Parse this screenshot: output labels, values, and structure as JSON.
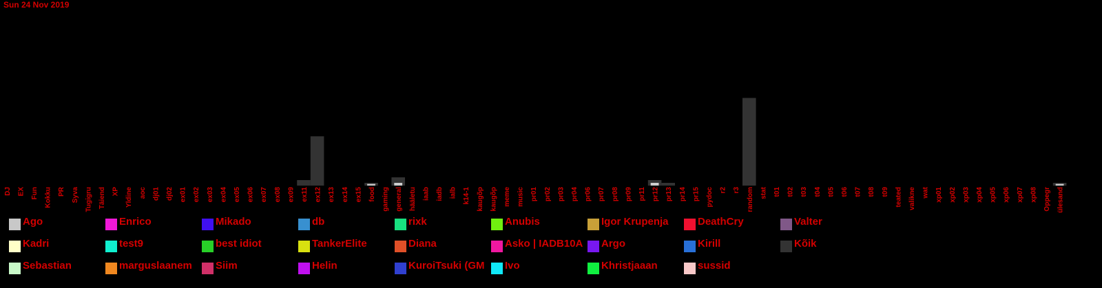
{
  "chart_data": {
    "type": "bar",
    "title": "Sun 24 Nov 2019",
    "xlabel": "",
    "ylabel": "",
    "categories": [
      "DJ",
      "EX",
      "Fun",
      "Kokku",
      "PR",
      "Syva",
      "Tugigru",
      "Täiend",
      "XP",
      "Yldine",
      "aoc",
      "dj01",
      "dj02",
      "ex01",
      "ex02",
      "ex03",
      "ex04",
      "ex05",
      "ex06",
      "ex07",
      "ex08",
      "ex09",
      "ex11",
      "ex12",
      "ex13",
      "ex14",
      "ex15",
      "food",
      "gaming",
      "general",
      "hääletu",
      "iaab",
      "iadb",
      "ialb",
      "k14-1",
      "kaugõp",
      "kaugõp",
      "meme",
      "music",
      "pr01",
      "pr02",
      "pr03",
      "pr04",
      "pr06",
      "pr07",
      "pr08",
      "pr09",
      "pr11",
      "pr12",
      "pr13",
      "pr14",
      "pr15",
      "pydoc",
      "r2",
      "r3",
      "random",
      "stat",
      "t01",
      "t02",
      "t03",
      "t04",
      "t05",
      "t06",
      "t07",
      "t08",
      "t09",
      "teated",
      "valikne",
      "wat",
      "xp01",
      "xp02",
      "xp03",
      "xp04",
      "xp05",
      "xp06",
      "xp07",
      "xp08",
      "Oppegr",
      "ülesand"
    ],
    "series": [
      {
        "name": "Kõik",
        "color": "#333333",
        "values": [
          0,
          0,
          0,
          0,
          0,
          0,
          0,
          0,
          0,
          0,
          0,
          0,
          0,
          0,
          0,
          0,
          0,
          0,
          0,
          0,
          0,
          0,
          1,
          9,
          0,
          0,
          0,
          0.5,
          0,
          1.5,
          0,
          0,
          0,
          0,
          0,
          0,
          0,
          0,
          0,
          0,
          0,
          0,
          0,
          0,
          0,
          0,
          0,
          0,
          1,
          0.5,
          0,
          0,
          0,
          0,
          0,
          16,
          0,
          0,
          0,
          0,
          0,
          0,
          0,
          0,
          0,
          0,
          0,
          0,
          0,
          0,
          0,
          0,
          0,
          0,
          0,
          0,
          0,
          0,
          0.5
        ]
      },
      {
        "name": "Ago",
        "color": "#cccccc",
        "values": [
          0,
          0,
          0,
          0,
          0,
          0,
          0,
          0,
          0,
          0,
          0,
          0,
          0,
          0,
          0,
          0,
          0,
          0,
          0,
          0,
          0,
          0,
          0,
          0,
          0,
          0,
          0,
          0.3,
          0,
          0.5,
          0,
          0,
          0,
          0,
          0,
          0,
          0,
          0,
          0,
          0,
          0,
          0,
          0,
          0,
          0,
          0,
          0,
          0,
          0.5,
          0,
          0,
          0,
          0,
          0,
          0,
          0,
          0,
          0,
          0,
          0,
          0,
          0,
          0,
          0,
          0,
          0,
          0,
          0,
          0,
          0,
          0,
          0,
          0,
          0,
          0,
          0,
          0,
          0,
          0.3
        ]
      }
    ],
    "ylim": [
      0,
      32
    ],
    "grid": false,
    "legend": {
      "placement": "bottom",
      "entries": [
        {
          "name": "Ago",
          "color": "#c8c8c8"
        },
        {
          "name": "Enrico",
          "color": "#f018d8"
        },
        {
          "name": "Mikado",
          "color": "#4010f0"
        },
        {
          "name": "db",
          "color": "#3890d0"
        },
        {
          "name": "rixk",
          "color": "#18e080"
        },
        {
          "name": "Anubis",
          "color": "#70f010"
        },
        {
          "name": "Igor Krupenja",
          "color": "#c8a038"
        },
        {
          "name": "DeathCry",
          "color": "#f01030"
        },
        {
          "name": "Valter",
          "color": "#805888"
        },
        {
          "name": "Kadri",
          "color": "#ffffc8"
        },
        {
          "name": "test9",
          "color": "#10f0d0"
        },
        {
          "name": "best idiot",
          "color": "#28d028"
        },
        {
          "name": "TankerElite",
          "color": "#d8e010"
        },
        {
          "name": "Diana",
          "color": "#e05028"
        },
        {
          "name": "Asko | IADB10A",
          "color": "#f018a0"
        },
        {
          "name": "Argo",
          "color": "#7818f0"
        },
        {
          "name": "Kirill",
          "color": "#2870d8"
        },
        {
          "name": "Kõik",
          "color": "#333333"
        },
        {
          "name": "Sebastian",
          "color": "#c8f8c8"
        },
        {
          "name": "marguslaanem",
          "color": "#f08820"
        },
        {
          "name": "Siim",
          "color": "#d03068"
        },
        {
          "name": "Helin",
          "color": "#c010f0"
        },
        {
          "name": "KuroiTsuki (GM",
          "color": "#3040d0"
        },
        {
          "name": "Ivo",
          "color": "#10e8f8"
        },
        {
          "name": "Khristjaaan",
          "color": "#10f040"
        },
        {
          "name": "sussid",
          "color": "#f8c8c8"
        }
      ]
    }
  }
}
